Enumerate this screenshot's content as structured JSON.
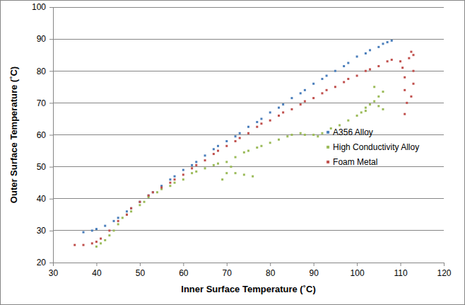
{
  "chart_data": {
    "type": "scatter",
    "x_label": "Inner Surface Temperature (˚C)",
    "y_label": "Outer Surface Temperature (˚C)",
    "xlim": [
      30,
      120
    ],
    "xticks": [
      30,
      40,
      50,
      60,
      70,
      80,
      90,
      100,
      110,
      120
    ],
    "ylim": [
      20,
      100
    ],
    "yticks": [
      20,
      30,
      40,
      50,
      60,
      70,
      80,
      90,
      100
    ],
    "grid": true,
    "legend": "right",
    "marker": "square",
    "series": [
      {
        "name": "A356 Alloy",
        "color": "#4a7ebb",
        "x": [
          37,
          39,
          40,
          42,
          44,
          45,
          47,
          48,
          50,
          52,
          53,
          55,
          57,
          58,
          60,
          62,
          63,
          65,
          67,
          68,
          70,
          72,
          73,
          75,
          77,
          78,
          80,
          82,
          83,
          85,
          87,
          88,
          90,
          92,
          93,
          95,
          97,
          98,
          100,
          102,
          103,
          105,
          106,
          107,
          108
        ],
        "values": [
          29.5,
          30,
          30.5,
          31.5,
          33,
          34,
          36,
          37,
          39,
          41,
          42,
          44,
          46,
          47,
          49,
          50.5,
          51.5,
          53.5,
          55.5,
          56.5,
          58,
          59.5,
          60.5,
          62.5,
          64,
          65,
          67,
          68.5,
          69.5,
          71.5,
          73,
          74,
          76,
          77.5,
          78.5,
          80,
          81.5,
          82.5,
          84.5,
          85.5,
          86.5,
          87.5,
          88.5,
          89,
          89.5
        ]
      },
      {
        "name": "High Conductivity Alloy",
        "color": "#9bbb59",
        "x": [
          40,
          41,
          42,
          43,
          44,
          45,
          46,
          47,
          48,
          50,
          51,
          52,
          54,
          55,
          57,
          58,
          60,
          62,
          63,
          65,
          67,
          68,
          70,
          71,
          70,
          72,
          74,
          76,
          69,
          72,
          74,
          75,
          77,
          78,
          80,
          82,
          84,
          85,
          87,
          88,
          90,
          91,
          92,
          94,
          96,
          98,
          100,
          101,
          102,
          103,
          104,
          105,
          106,
          104,
          102,
          105,
          106
        ],
        "values": [
          25,
          26,
          27,
          28.5,
          30,
          32,
          34,
          35,
          36,
          38,
          39,
          40.5,
          42,
          43,
          44,
          45,
          46,
          48,
          48.5,
          49.5,
          50.5,
          51,
          51.5,
          50,
          48,
          48,
          47.5,
          47,
          46,
          53,
          54.5,
          55,
          56,
          56.5,
          57.5,
          58.5,
          59.5,
          60,
          60.5,
          60,
          60,
          59.5,
          60.5,
          62,
          63,
          64.5,
          66,
          67,
          68.5,
          69.5,
          70.5,
          72,
          73.5,
          75,
          67.5,
          69,
          68
        ]
      },
      {
        "name": "Foam Metal",
        "color": "#c0504d",
        "x": [
          35,
          37,
          39,
          40,
          41,
          43,
          45,
          47,
          48,
          50,
          52,
          53,
          55,
          57,
          58,
          60,
          62,
          63,
          65,
          67,
          68,
          70,
          72,
          73,
          75,
          77,
          78,
          80,
          82,
          83,
          85,
          87,
          88,
          90,
          92,
          93,
          95,
          97,
          98,
          100,
          102,
          103,
          105,
          107,
          108,
          110,
          110.5,
          111,
          111,
          111.5,
          111,
          112,
          112.5,
          113,
          113,
          113,
          112.5
        ],
        "values": [
          25.5,
          25.5,
          26,
          26.5,
          27.5,
          30,
          33,
          35,
          37,
          39,
          41,
          42,
          43.5,
          45,
          46,
          47.5,
          49.5,
          50.5,
          52,
          54,
          55,
          56.5,
          58,
          59,
          60.5,
          62.5,
          63.5,
          64.5,
          66,
          67,
          68,
          69.5,
          70.5,
          71.5,
          73,
          74,
          75,
          76.5,
          77.5,
          78.5,
          80,
          80.5,
          81.5,
          83,
          83.5,
          83,
          81,
          78,
          74,
          70,
          66.5,
          84,
          86,
          85,
          80,
          76,
          72
        ]
      }
    ]
  }
}
